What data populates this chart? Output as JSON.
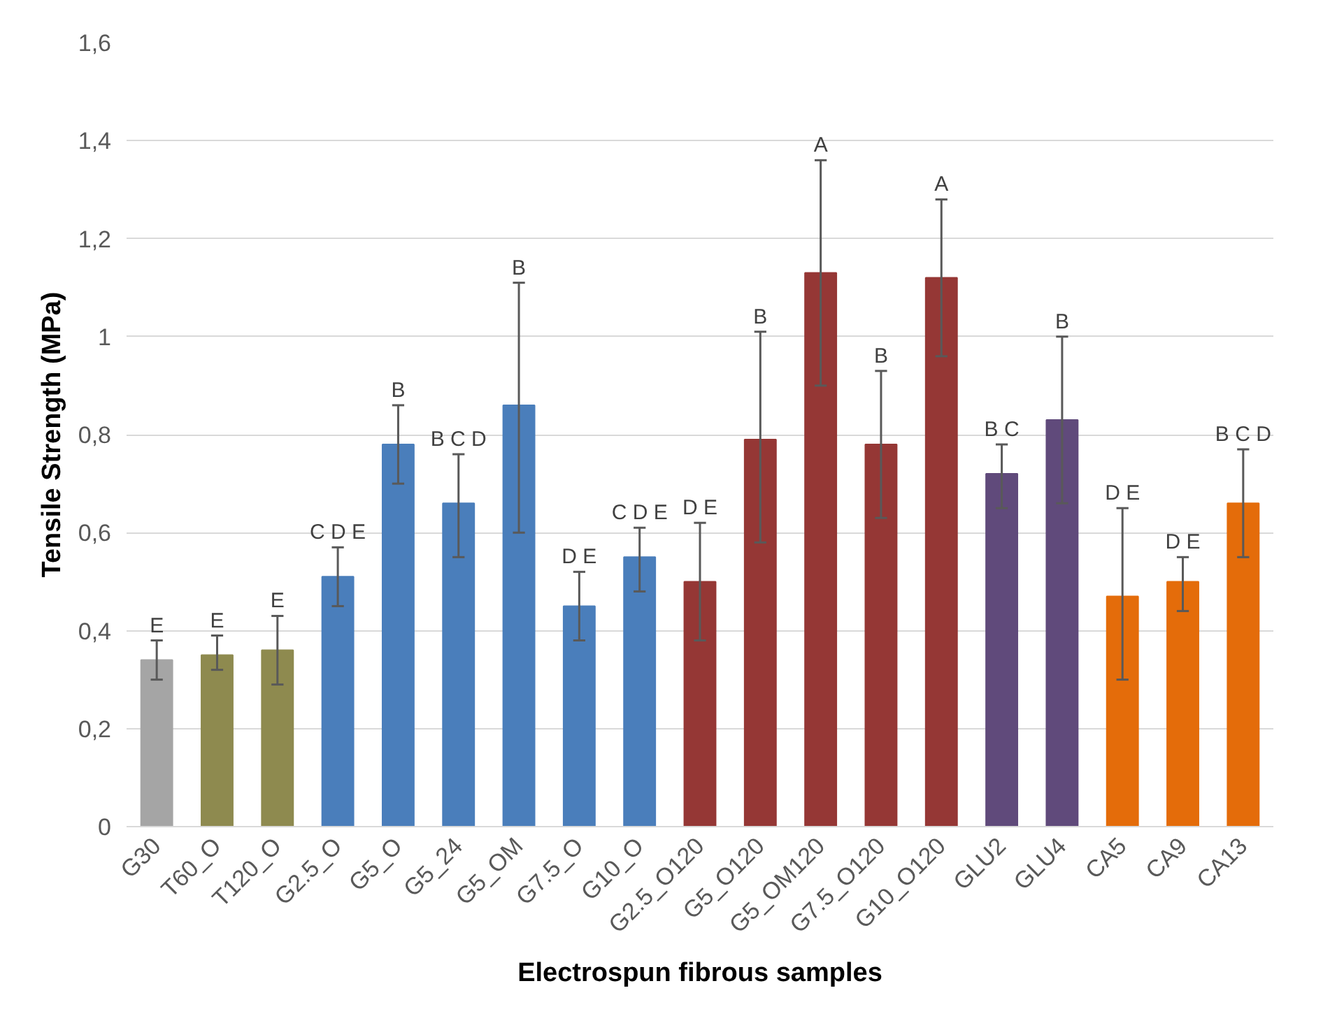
{
  "chart_data": {
    "type": "bar",
    "xlabel": "Electrospun fibrous samples",
    "ylabel": "Tensile Strength (MPa)",
    "categories": [
      "G30",
      "T60_O",
      "T120_O",
      "G2.5_O",
      "G5_O",
      "G5_24",
      "G5_OM",
      "G7.5_O",
      "G10_O",
      "G2.5_O120",
      "G5_O120",
      "G5_OM120",
      "G7.5_O120",
      "G10_O120",
      "GLU2",
      "GLU4",
      "CA5",
      "CA9",
      "CA13"
    ],
    "values": [
      0.34,
      0.35,
      0.36,
      0.51,
      0.78,
      0.66,
      0.86,
      0.45,
      0.55,
      0.5,
      0.79,
      1.13,
      0.78,
      1.12,
      0.72,
      0.83,
      0.47,
      0.5,
      0.66
    ],
    "errors": [
      [
        0.3,
        0.38
      ],
      [
        0.32,
        0.39
      ],
      [
        0.29,
        0.43
      ],
      [
        0.45,
        0.57
      ],
      [
        0.7,
        0.86
      ],
      [
        0.55,
        0.76
      ],
      [
        0.6,
        1.11
      ],
      [
        0.38,
        0.52
      ],
      [
        0.48,
        0.61
      ],
      [
        0.38,
        0.62
      ],
      [
        0.58,
        1.01
      ],
      [
        0.9,
        1.36
      ],
      [
        0.63,
        0.93
      ],
      [
        0.96,
        1.28
      ],
      [
        0.65,
        0.78
      ],
      [
        0.66,
        1.0
      ],
      [
        0.3,
        0.65
      ],
      [
        0.44,
        0.55
      ],
      [
        0.55,
        0.77
      ]
    ],
    "colors": [
      "#a5a5a5",
      "#8e8a4f",
      "#8e8a4f",
      "#4a7ebb",
      "#4a7ebb",
      "#4a7ebb",
      "#4a7ebb",
      "#4a7ebb",
      "#4a7ebb",
      "#953735",
      "#953735",
      "#953735",
      "#953735",
      "#953735",
      "#604a7b",
      "#604a7b",
      "#e46c0a",
      "#e46c0a",
      "#e46c0a"
    ],
    "ylim": [
      0,
      1.6
    ],
    "yticks": [
      0,
      {
        "value": 0.2,
        "label": "0,2"
      },
      {
        "value": 0.4,
        "label": "0,4"
      },
      {
        "value": 0.6,
        "label": "0,6"
      },
      {
        "value": 0.8,
        "label": "0,8"
      },
      1,
      {
        "value": 1.2,
        "label": "1,2"
      },
      {
        "value": 1.4,
        "label": "1,4"
      },
      {
        "value": 1.6,
        "label": "1,6"
      }
    ],
    "grid": "y",
    "annotations": [
      {
        "text": "E",
        "x": "G30",
        "y": 0.38
      },
      {
        "text": "E",
        "x": "T60_O",
        "y": 0.39
      },
      {
        "text": "E",
        "x": "T120_O",
        "y": 0.43
      },
      {
        "text": "C D E",
        "x": "G2.5_O",
        "y": 0.57
      },
      {
        "text": "B",
        "x": "G5_O",
        "y": 0.86
      },
      {
        "text": "B C D",
        "x": "G5_24",
        "y": 0.76
      },
      {
        "text": "B",
        "x": "G5_OM",
        "y": 1.11
      },
      {
        "text": "D E",
        "x": "G7.5_O",
        "y": 0.52
      },
      {
        "text": "C D E",
        "x": "G10_O",
        "y": 0.61
      },
      {
        "text": "D E",
        "x": "G2.5_O120",
        "y": 0.62
      },
      {
        "text": "B",
        "x": "G5_O120",
        "y": 1.01
      },
      {
        "text": "A",
        "x": "G5_OM120",
        "y": 1.36
      },
      {
        "text": "B",
        "x": "G7.5_O120",
        "y": 0.93
      },
      {
        "text": "A",
        "x": "G10_O120",
        "y": 1.28
      },
      {
        "text": "B C",
        "x": "GLU2",
        "y": 0.78
      },
      {
        "text": "B",
        "x": "GLU4",
        "y": 1.0
      },
      {
        "text": "D E",
        "x": "CA5",
        "y": 0.65
      },
      {
        "text": "D E",
        "x": "CA9",
        "y": 0.55
      },
      {
        "text": "B C D",
        "x": "CA13",
        "y": 0.77
      }
    ]
  }
}
